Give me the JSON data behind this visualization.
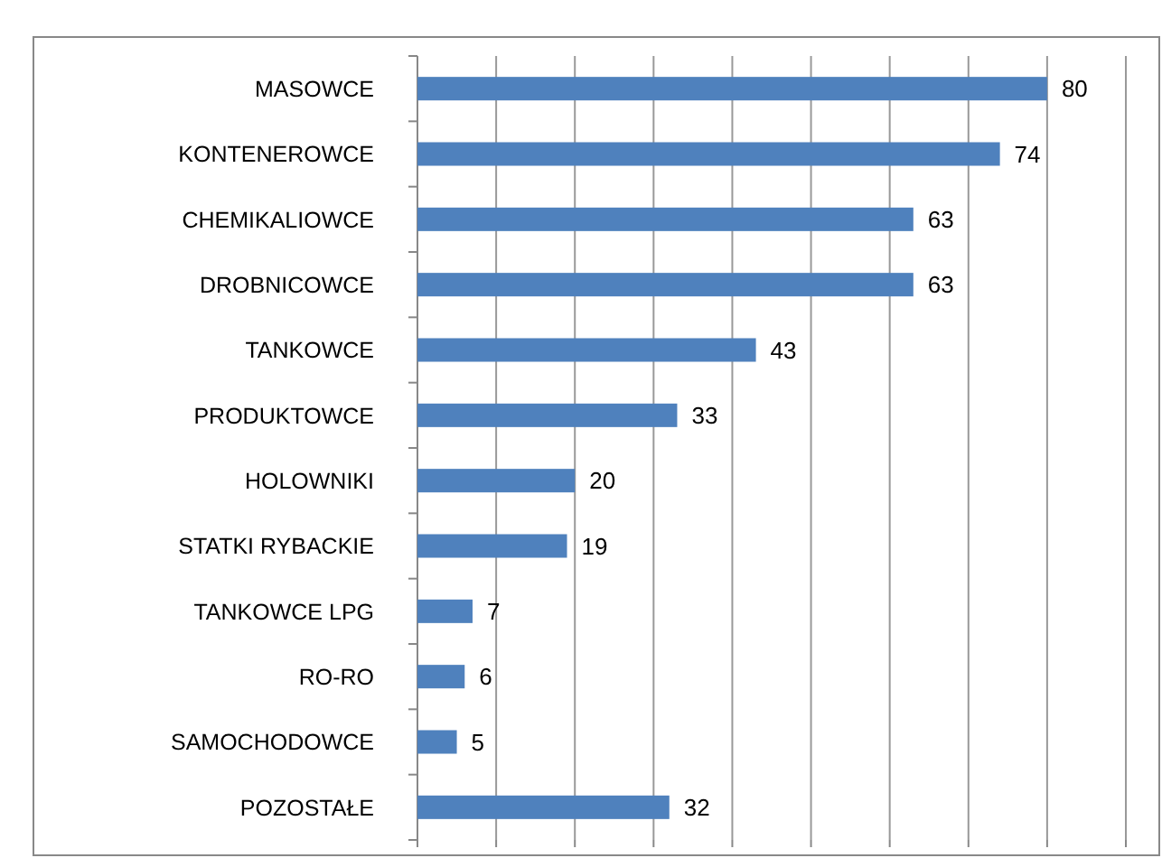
{
  "chart_data": {
    "type": "bar",
    "orientation": "horizontal",
    "categories": [
      "MASOWCE",
      "KONTENEROWCE",
      "CHEMIKALIOWCE",
      "DROBNICOWCE",
      "TANKOWCE",
      "PRODUKTOWCE",
      "HOLOWNIKI",
      "STATKI RYBACKIE",
      "TANKOWCE LPG",
      "RO-RO",
      "SAMOCHODOWCE",
      "POZOSTAŁE"
    ],
    "values": [
      80,
      74,
      63,
      63,
      43,
      33,
      20,
      19,
      7,
      6,
      5,
      32
    ],
    "color": "#4f81bd",
    "data_labels": true,
    "xlim": [
      0,
      90
    ],
    "xticks": [
      {
        "value": 0,
        "label": null
      },
      {
        "value": 10,
        "label": null
      },
      {
        "value": 20,
        "label": null
      },
      {
        "value": 30,
        "label": null
      },
      {
        "value": 40,
        "label": null
      },
      {
        "value": 50,
        "label": null
      },
      {
        "value": 60,
        "label": null
      },
      {
        "value": 70,
        "label": null
      },
      {
        "value": 80,
        "label": null
      },
      {
        "value": 90,
        "label": null
      }
    ],
    "grid": "x",
    "tick_labels": "y"
  }
}
